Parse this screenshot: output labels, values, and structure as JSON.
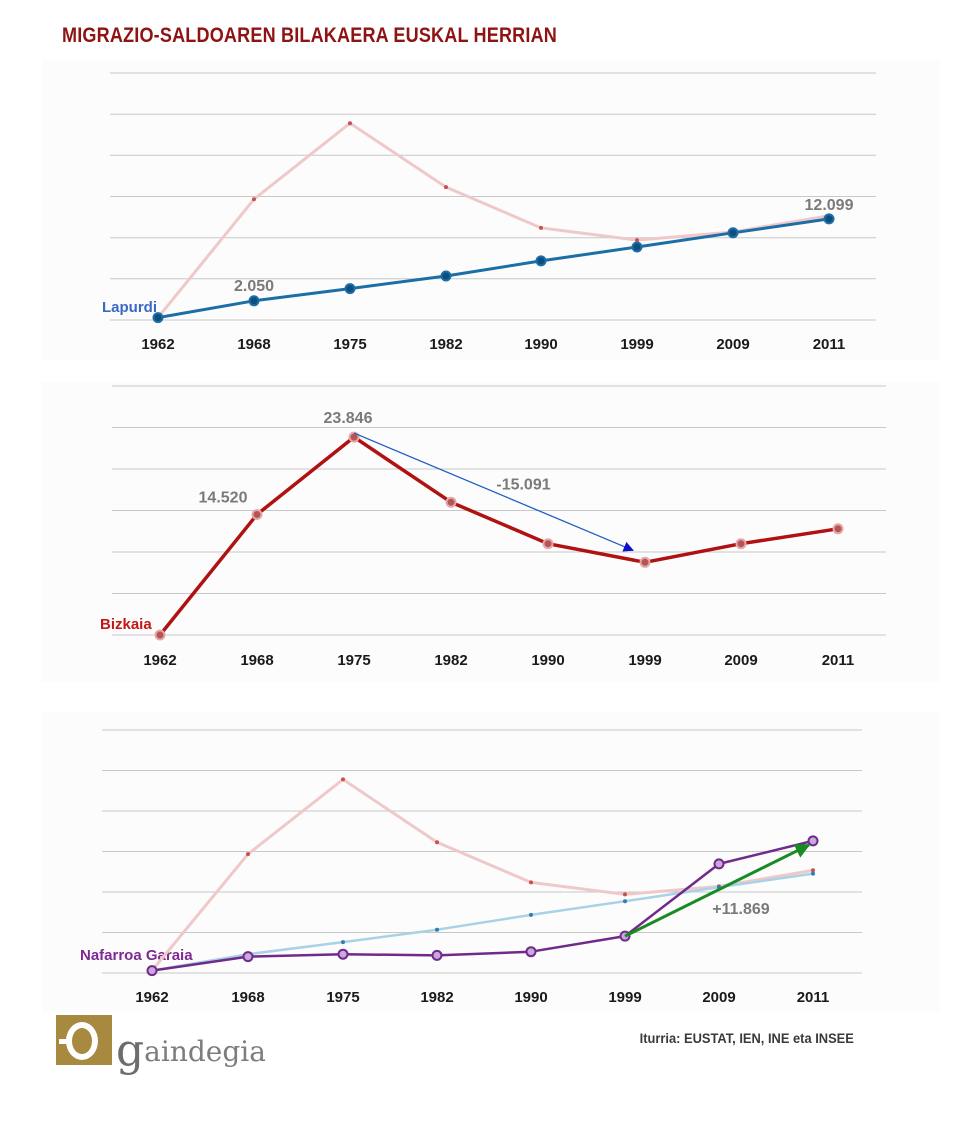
{
  "title": "MIGRAZIO-SALDOAREN BILAKAERA EUSKAL HERRIAN",
  "source": "Iturria: EUSTAT, IEN, INE eta INSEE",
  "logo": {
    "g": "g",
    "rest": "aindegia"
  },
  "colors": {
    "title": "#8f1313",
    "lapurdi": "#1c6ea5",
    "bizkaia": "#b01111",
    "nafarroa": "#6f2a8a",
    "ghost_bizkaia": "#efc9c9",
    "ghost_lapurdi": "#a9d2e7",
    "arrow_blue": "#1f5fc0",
    "arrow_green": "#1a8a25",
    "grid": "#c8c8c8"
  },
  "chart_data": [
    {
      "type": "line",
      "region": "Lapurdi",
      "categories": [
        "1962",
        "1968",
        "1975",
        "1982",
        "1990",
        "1999",
        "2009",
        "2011"
      ],
      "ylim": [
        -300,
        30000
      ],
      "series": [
        {
          "name": "Lapurdi",
          "values": [
            0,
            2050,
            3550,
            5100,
            6950,
            8650,
            10400,
            12099
          ]
        },
        {
          "name": "Bizkaia",
          "values": [
            0,
            14520,
            23846,
            16000,
            11000,
            9500,
            10500,
            12500
          ],
          "ghost": true
        }
      ],
      "labels": [
        {
          "category": "1968",
          "text": "2.050"
        },
        {
          "category": "2011",
          "text": "12.099"
        }
      ]
    },
    {
      "type": "line",
      "region": "Bizkaia",
      "categories": [
        "1962",
        "1968",
        "1975",
        "1982",
        "1990",
        "1999",
        "2009",
        "2011"
      ],
      "ylim": [
        0,
        30000
      ],
      "series": [
        {
          "name": "Bizkaia",
          "values": [
            0,
            14520,
            23846,
            16000,
            11000,
            8755,
            11000,
            12800
          ]
        }
      ],
      "labels": [
        {
          "category": "1968",
          "text": "14.520"
        },
        {
          "category": "1975",
          "text": "23.846"
        }
      ],
      "annotation": {
        "from": "1975",
        "to": "1999",
        "text": "-15.091"
      }
    },
    {
      "type": "line",
      "region": "Nafarroa Garaia",
      "categories": [
        "1962",
        "1968",
        "1975",
        "1982",
        "1990",
        "1999",
        "2009",
        "2011"
      ],
      "ylim": [
        -300,
        30000
      ],
      "series": [
        {
          "name": "Bizkaia",
          "values": [
            0,
            14520,
            23846,
            16000,
            11000,
            9500,
            10500,
            12500
          ],
          "ghost": true
        },
        {
          "name": "Lapurdi",
          "values": [
            0,
            2050,
            3550,
            5100,
            6950,
            8650,
            10400,
            12099
          ],
          "ghost": true
        },
        {
          "name": "Nafarroa Garaia",
          "values": [
            0,
            1750,
            2050,
            1900,
            2350,
            4300,
            13300,
            16170
          ]
        }
      ],
      "annotation": {
        "from": "1999",
        "to": "2011",
        "text": "+11.869"
      }
    }
  ]
}
